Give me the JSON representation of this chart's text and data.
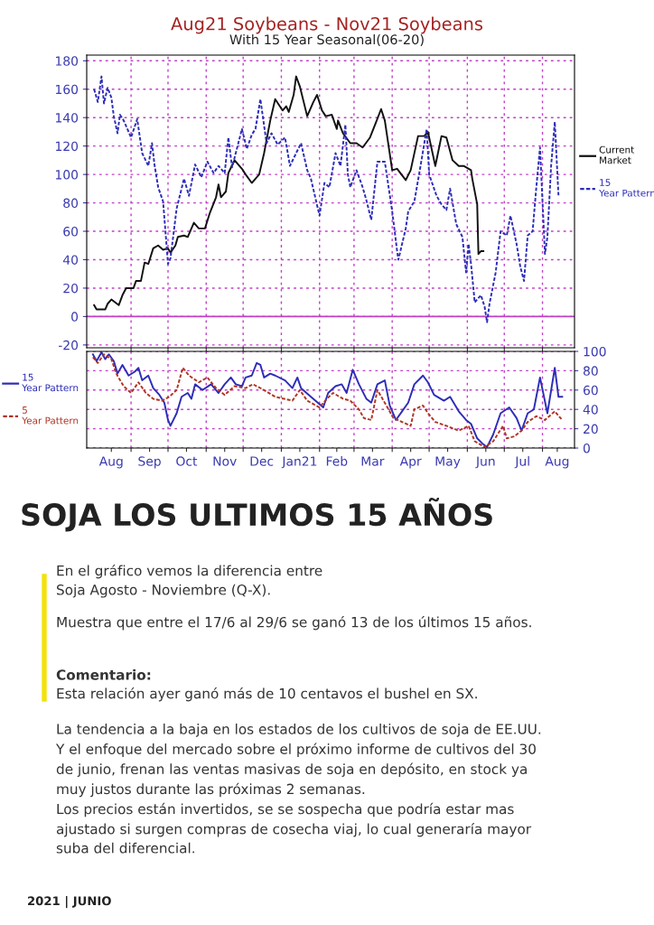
{
  "chart_data": [
    {
      "type": "line",
      "title": "Aug21 Soybeans - Nov21 Soybeans",
      "subtitle": "With 15 Year Seasonal(06-20)",
      "xlim": [
        "2020-07-27",
        "2021-08-27"
      ],
      "ylim": [
        -22,
        184
      ],
      "yticks": [
        -20,
        0,
        20,
        40,
        60,
        80,
        100,
        120,
        140,
        160,
        180
      ],
      "xticks": [
        {
          "value": "2020-09-01",
          "label": null
        },
        {
          "value": "2020-10-01",
          "label": null
        },
        {
          "value": "2020-11-01",
          "label": null
        },
        {
          "value": "2020-12-01",
          "label": null
        },
        {
          "value": "2021-01-01",
          "label": null
        },
        {
          "value": "2021-02-01",
          "label": null
        },
        {
          "value": "2021-03-01",
          "label": null
        },
        {
          "value": "2021-04-01",
          "label": null
        },
        {
          "value": "2021-05-01",
          "label": null
        },
        {
          "value": "2021-06-01",
          "label": null
        },
        {
          "value": "2021-07-01",
          "label": null
        },
        {
          "value": "2021-08-01",
          "label": null
        }
      ],
      "tick_labels": "y",
      "grid": true,
      "legend": "right",
      "ref_lines": [
        {
          "axis": "y",
          "value": 0,
          "label": null,
          "color": "#c040c8",
          "line_style": "solid"
        }
      ],
      "series": [
        {
          "name": "Current Market",
          "color": "#111111",
          "line_style": "solid",
          "x": [
            "2020-08-02",
            "2020-08-04",
            "2020-08-11",
            "2020-08-13",
            "2020-08-16",
            "2020-08-22",
            "2020-08-25",
            "2020-08-28",
            "2020-09-03",
            "2020-09-05",
            "2020-09-09",
            "2020-09-12",
            "2020-09-15",
            "2020-09-19",
            "2020-09-23",
            "2020-09-27",
            "2020-10-01",
            "2020-10-03",
            "2020-10-07",
            "2020-10-09",
            "2020-10-14",
            "2020-10-17",
            "2020-10-22",
            "2020-10-26",
            "2020-10-31",
            "2020-11-04",
            "2020-11-09",
            "2020-11-11",
            "2020-11-13",
            "2020-11-17",
            "2020-11-19",
            "2020-11-24",
            "2020-11-30",
            "2020-12-03",
            "2020-12-08",
            "2020-12-14",
            "2020-12-18",
            "2020-12-23",
            "2020-12-27",
            "2021-01-02",
            "2021-01-05",
            "2021-01-07",
            "2021-01-11",
            "2021-01-13",
            "2021-01-16",
            "2021-01-22",
            "2021-01-27",
            "2021-01-30",
            "2021-02-03",
            "2021-02-06",
            "2021-02-11",
            "2021-02-15",
            "2021-02-16",
            "2021-02-20",
            "2021-02-26",
            "2021-03-03",
            "2021-03-08",
            "2021-03-14",
            "2021-03-19",
            "2021-03-23",
            "2021-03-26",
            "2021-04-01",
            "2021-04-05",
            "2021-04-12",
            "2021-04-16",
            "2021-04-22",
            "2021-04-27",
            "2021-04-30",
            "2021-05-03",
            "2021-05-06",
            "2021-05-11",
            "2021-05-15",
            "2021-05-20",
            "2021-05-25",
            "2021-05-29",
            "2021-06-04",
            "2021-06-05",
            "2021-06-09",
            "2021-06-10",
            "2021-06-12",
            "2021-06-14"
          ],
          "values": [
            8,
            5,
            5,
            9,
            12,
            8,
            15,
            20,
            20,
            25,
            25,
            38,
            37,
            48,
            50,
            47,
            48,
            45,
            50,
            56,
            57,
            56,
            66,
            62,
            62,
            73,
            84,
            93,
            84,
            88,
            101,
            110,
            104,
            100,
            94,
            100,
            115,
            138,
            153,
            145,
            148,
            144,
            156,
            169,
            162,
            141,
            151,
            156,
            145,
            141,
            142,
            132,
            138,
            129,
            122,
            122,
            119,
            126,
            137,
            146,
            138,
            103,
            104,
            96,
            103,
            127,
            127,
            130,
            118,
            106,
            127,
            126,
            110,
            106,
            106,
            103,
            97,
            79,
            44,
            46,
            46
          ]
        },
        {
          "name": "15 Year Pattern",
          "color": "#2d2db8",
          "line_style": "dotted",
          "x": [
            "2020-08-02",
            "2020-08-05",
            "2020-08-08",
            "2020-08-10",
            "2020-08-13",
            "2020-08-16",
            "2020-08-18",
            "2020-08-21",
            "2020-08-23",
            "2020-08-26",
            "2020-09-01",
            "2020-09-06",
            "2020-09-10",
            "2020-09-15",
            "2020-09-18",
            "2020-09-20",
            "2020-09-23",
            "2020-09-27",
            "2020-10-01",
            "2020-10-03",
            "2020-10-08",
            "2020-10-14",
            "2020-10-18",
            "2020-10-23",
            "2020-10-28",
            "2020-11-02",
            "2020-11-07",
            "2020-11-11",
            "2020-11-16",
            "2020-11-19",
            "2020-11-22",
            "2020-11-25",
            "2020-11-30",
            "2020-12-04",
            "2020-12-08",
            "2020-12-11",
            "2020-12-15",
            "2020-12-20",
            "2020-12-24",
            "2020-12-29",
            "2021-01-04",
            "2021-01-08",
            "2021-01-13",
            "2021-01-17",
            "2021-01-22",
            "2021-01-25",
            "2021-02-01",
            "2021-02-05",
            "2021-02-09",
            "2021-02-14",
            "2021-02-18",
            "2021-02-22",
            "2021-02-24",
            "2021-02-26",
            "2021-03-03",
            "2021-03-08",
            "2021-03-11",
            "2021-03-15",
            "2021-03-20",
            "2021-03-26",
            "2021-04-01",
            "2021-04-05",
            "2021-04-06",
            "2021-04-12",
            "2021-04-14",
            "2021-04-19",
            "2021-04-24",
            "2021-04-29",
            "2021-05-01",
            "2021-05-07",
            "2021-05-11",
            "2021-05-15",
            "2021-05-18",
            "2021-05-23",
            "2021-05-28",
            "2021-05-31",
            "2021-06-02",
            "2021-06-04",
            "2021-06-07",
            "2021-06-12",
            "2021-06-15",
            "2021-06-17",
            "2021-06-19",
            "2021-06-24",
            "2021-06-28",
            "2021-07-03",
            "2021-07-06",
            "2021-07-11",
            "2021-07-14",
            "2021-07-17",
            "2021-07-20",
            "2021-07-24",
            "2021-07-27",
            "2021-07-30",
            "2021-08-03",
            "2021-08-05",
            "2021-08-08",
            "2021-08-11",
            "2021-08-14"
          ],
          "values": [
            160,
            151,
            169,
            150,
            161,
            154,
            141,
            129,
            142,
            138,
            126,
            139,
            115,
            106,
            122,
            107,
            91,
            81,
            37,
            41,
            76,
            97,
            85,
            107,
            98,
            109,
            101,
            106,
            101,
            126,
            105,
            115,
            132,
            118,
            128,
            132,
            153,
            122,
            129,
            121,
            126,
            106,
            115,
            122,
            103,
            97,
            71,
            94,
            91,
            115,
            106,
            135,
            100,
            91,
            103,
            91,
            82,
            68,
            109,
            109,
            74,
            46,
            40,
            62,
            74,
            81,
            106,
            132,
            100,
            85,
            79,
            75,
            90,
            65,
            56,
            31,
            51,
            37,
            10,
            15,
            7,
            -4,
            9,
            31,
            60,
            57,
            71,
            51,
            35,
            25,
            57,
            60,
            91,
            119,
            44,
            56,
            106,
            137,
            85
          ]
        }
      ]
    },
    {
      "type": "line",
      "xlim": [
        "2020-07-27",
        "2021-08-27"
      ],
      "ylim": [
        0,
        100
      ],
      "yticks": [
        0,
        20,
        40,
        60,
        80,
        100
      ],
      "xticks": [
        {
          "value": "2020-08-16",
          "label": "Aug"
        },
        {
          "value": "2020-09-01",
          "label": null
        },
        {
          "value": "2020-09-16",
          "label": "Sep"
        },
        {
          "value": "2020-10-01",
          "label": null
        },
        {
          "value": "2020-10-16",
          "label": "Oct"
        },
        {
          "value": "2020-11-01",
          "label": null
        },
        {
          "value": "2020-11-16",
          "label": "Nov"
        },
        {
          "value": "2020-12-01",
          "label": null
        },
        {
          "value": "2020-12-16",
          "label": "Dec"
        },
        {
          "value": "2021-01-01",
          "label": null
        },
        {
          "value": "2021-01-16",
          "label": "Jan21"
        },
        {
          "value": "2021-02-01",
          "label": null
        },
        {
          "value": "2021-02-15",
          "label": "Feb"
        },
        {
          "value": "2021-03-01",
          "label": null
        },
        {
          "value": "2021-03-16",
          "label": "Mar"
        },
        {
          "value": "2021-04-01",
          "label": null
        },
        {
          "value": "2021-04-16",
          "label": "Apr"
        },
        {
          "value": "2021-05-01",
          "label": null
        },
        {
          "value": "2021-05-16",
          "label": "May"
        },
        {
          "value": "2021-06-01",
          "label": null
        },
        {
          "value": "2021-06-16",
          "label": "Jun"
        },
        {
          "value": "2021-07-01",
          "label": null
        },
        {
          "value": "2021-07-16",
          "label": "Jul"
        },
        {
          "value": "2021-08-01",
          "label": null
        },
        {
          "value": "2021-08-13",
          "label": "Aug"
        }
      ],
      "grid": true,
      "legend": "left",
      "series": [
        {
          "name": "15 Year Pattern",
          "color": "#2d2db8",
          "line_style": "solid",
          "x": [
            "2020-08-01",
            "2020-08-04",
            "2020-08-08",
            "2020-08-11",
            "2020-08-14",
            "2020-08-18",
            "2020-08-21",
            "2020-08-25",
            "2020-08-30",
            "2020-09-04",
            "2020-09-07",
            "2020-09-10",
            "2020-09-15",
            "2020-09-19",
            "2020-09-24",
            "2020-09-28",
            "2020-10-01",
            "2020-10-03",
            "2020-10-08",
            "2020-10-12",
            "2020-10-17",
            "2020-10-20",
            "2020-10-23",
            "2020-10-29",
            "2020-11-05",
            "2020-11-11",
            "2020-11-16",
            "2020-11-21",
            "2020-11-25",
            "2020-11-30",
            "2020-12-03",
            "2020-12-08",
            "2020-12-12",
            "2020-12-15",
            "2020-12-18",
            "2020-12-23",
            "2020-12-27",
            "2021-01-04",
            "2021-01-10",
            "2021-01-14",
            "2021-01-17",
            "2021-01-25",
            "2021-02-04",
            "2021-02-08",
            "2021-02-14",
            "2021-02-19",
            "2021-02-23",
            "2021-02-28",
            "2021-03-05",
            "2021-03-11",
            "2021-03-15",
            "2021-03-20",
            "2021-03-26",
            "2021-03-30",
            "2021-04-04",
            "2021-04-09",
            "2021-04-14",
            "2021-04-19",
            "2021-04-26",
            "2021-04-30",
            "2021-05-05",
            "2021-05-13",
            "2021-05-18",
            "2021-05-25",
            "2021-05-31",
            "2021-06-04",
            "2021-06-09",
            "2021-06-13",
            "2021-06-17",
            "2021-06-22",
            "2021-06-28",
            "2021-07-05",
            "2021-07-11",
            "2021-07-15",
            "2021-07-20",
            "2021-07-25",
            "2021-07-30",
            "2021-08-05",
            "2021-08-11",
            "2021-08-14",
            "2021-08-17"
          ],
          "values": [
            97,
            90,
            99,
            92,
            97,
            90,
            77,
            86,
            75,
            79,
            83,
            70,
            75,
            62,
            55,
            47,
            29,
            23,
            36,
            53,
            57,
            51,
            66,
            60,
            66,
            57,
            66,
            73,
            66,
            64,
            73,
            75,
            88,
            86,
            73,
            77,
            75,
            70,
            62,
            73,
            62,
            53,
            42,
            57,
            64,
            66,
            57,
            81,
            66,
            51,
            47,
            66,
            70,
            44,
            29,
            38,
            47,
            66,
            75,
            68,
            55,
            49,
            53,
            38,
            29,
            25,
            10,
            5,
            1,
            14,
            36,
            42,
            31,
            18,
            36,
            40,
            73,
            36,
            83,
            53,
            53
          ]
        },
        {
          "name": "5 Year Pattern",
          "color": "#b03424",
          "line_style": "dotted",
          "x": [
            "2020-08-01",
            "2020-08-05",
            "2020-08-10",
            "2020-08-16",
            "2020-08-20",
            "2020-08-26",
            "2020-09-01",
            "2020-09-07",
            "2020-09-13",
            "2020-09-19",
            "2020-09-26",
            "2020-10-02",
            "2020-10-08",
            "2020-10-13",
            "2020-10-18",
            "2020-10-26",
            "2020-11-02",
            "2020-11-09",
            "2020-11-16",
            "2020-11-24",
            "2020-12-03",
            "2020-12-09",
            "2020-12-18",
            "2020-12-27",
            "2021-01-10",
            "2021-01-16",
            "2021-01-22",
            "2021-02-01",
            "2021-02-07",
            "2021-02-12",
            "2021-02-20",
            "2021-02-26",
            "2021-03-05",
            "2021-03-09",
            "2021-03-15",
            "2021-03-20",
            "2021-03-25",
            "2021-04-02",
            "2021-04-09",
            "2021-04-16",
            "2021-04-19",
            "2021-04-26",
            "2021-04-30",
            "2021-05-06",
            "2021-05-15",
            "2021-05-25",
            "2021-06-02",
            "2021-06-07",
            "2021-06-15",
            "2021-06-22",
            "2021-06-30",
            "2021-07-03",
            "2021-07-09",
            "2021-07-15",
            "2021-07-20",
            "2021-07-27",
            "2021-08-03",
            "2021-08-11",
            "2021-08-17"
          ],
          "values": [
            94,
            88,
            97,
            92,
            77,
            64,
            57,
            68,
            57,
            51,
            49,
            53,
            60,
            83,
            75,
            68,
            73,
            62,
            55,
            64,
            62,
            66,
            60,
            53,
            49,
            60,
            49,
            42,
            51,
            57,
            51,
            49,
            40,
            31,
            29,
            60,
            49,
            31,
            27,
            23,
            40,
            44,
            36,
            27,
            23,
            18,
            23,
            7,
            1,
            7,
            23,
            10,
            12,
            18,
            27,
            33,
            29,
            38,
            29
          ]
        }
      ],
      "annotations": [
        "SOJA LOS ULTIMOS 15 AÑOS",
        "En el gráfico vemos la diferencia entre\nSoja Agosto - Noviembre (Q-X).",
        "Muestra que entre el 17/6 al 29/6 se ganó 13 de los últimos 15 años.",
        "Comentario:",
        "Esta relación ayer ganó más de 10 centavos el bushel en SX.",
        "La tendencia a la baja en los estados de los cultivos de soja de EE.UU.\nY el enfoque del mercado sobre el próximo informe de cultivos del 30\nde junio, frenan las ventas masivas de soja en depósito, en stock ya\nmuy justos durante las próximas 2 semanas.\nLos precios están invertidos, se se sospecha que podría estar mas\najustado si surgen compras de cosecha viaj, lo cual generaría mayor\nsuba del diferencial.",
        "2021 | JUNIO"
      ]
    }
  ]
}
